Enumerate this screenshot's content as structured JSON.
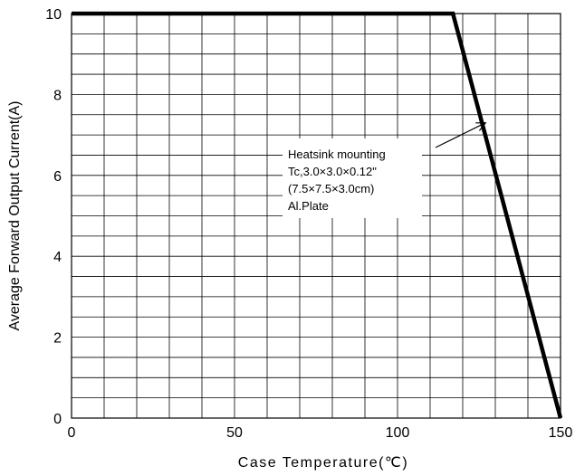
{
  "chart_data": {
    "type": "line",
    "title": "",
    "xlabel": "Case Temperature(℃)",
    "ylabel": "Average Forward Output Current(A)",
    "xlim": [
      0,
      150
    ],
    "ylim": [
      0,
      10
    ],
    "x_ticks": [
      "0",
      "50",
      "100",
      "150"
    ],
    "y_ticks": [
      "0",
      "2",
      "4",
      "6",
      "8",
      "10"
    ],
    "grid": true,
    "series": [
      {
        "x": [
          0,
          117,
          150
        ],
        "y": [
          10,
          10,
          0
        ]
      }
    ],
    "annotation": {
      "lines": [
        "Heatsink  mounting",
        "Tc,3.0×3.0×0.12\"",
        "(7.5×7.5×3.0cm)",
        "Al.Plate"
      ],
      "arrow_to": [
        127,
        7.3
      ]
    }
  }
}
